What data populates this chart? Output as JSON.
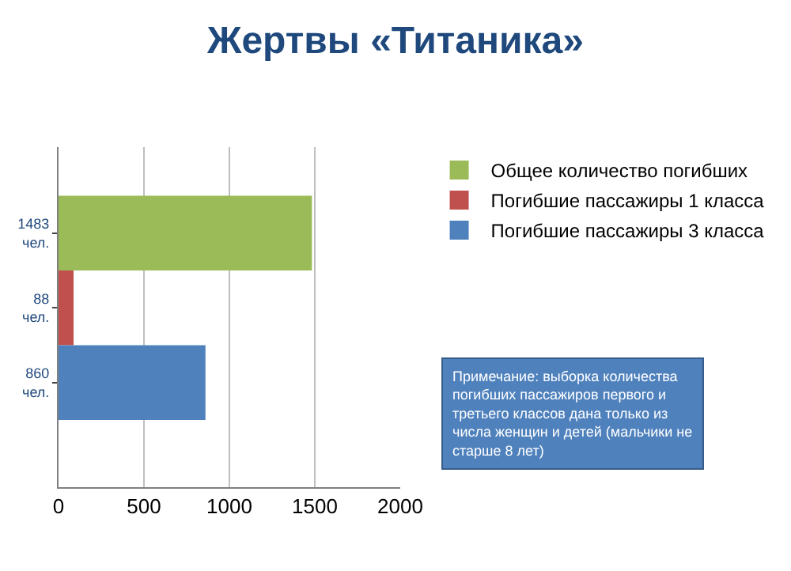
{
  "chart_data": {
    "type": "bar",
    "orientation": "horizontal",
    "title": "Жертвы «Титаника»",
    "categories": [
      "1483 чел.",
      "88 чел.",
      "860 чел."
    ],
    "series": [
      {
        "name": "Общее количество погибших",
        "color": "#9bbb59",
        "values": [
          1483,
          null,
          null
        ]
      },
      {
        "name": "Погибшие пассажиры 1 класса",
        "color": "#c0504d",
        "values": [
          null,
          88,
          null
        ]
      },
      {
        "name": "Погибшие пассажиры 3 класса",
        "color": "#4f81bd",
        "values": [
          null,
          null,
          860
        ]
      }
    ],
    "xlim": [
      0,
      2000
    ],
    "xticks": [
      0,
      500,
      1000,
      1500,
      2000
    ],
    "grid": "x",
    "legend": "right",
    "annotations": [
      "Примечание: выборка количества погибших пассажиров первого и третьего классов дана только из числа женщин и детей (мальчики не старше 8 лет)"
    ]
  }
}
